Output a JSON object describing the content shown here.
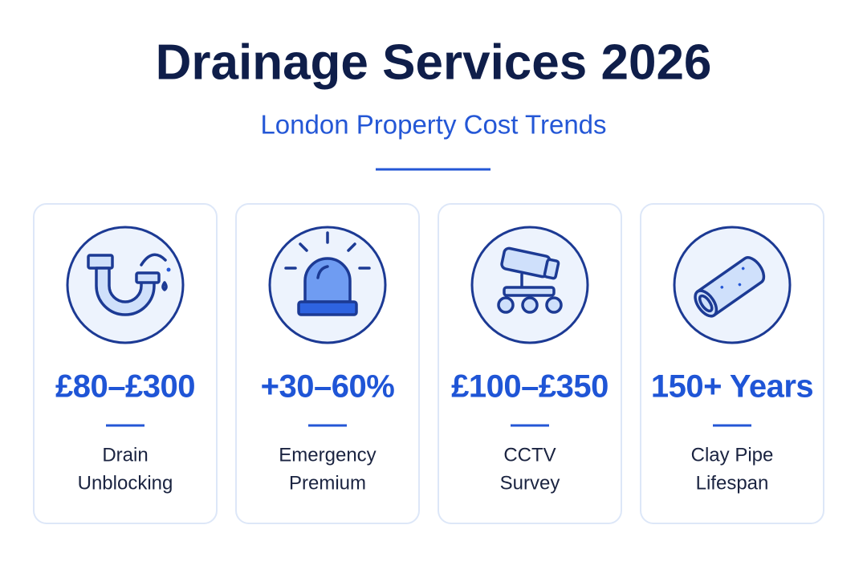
{
  "header": {
    "title": "Drainage Services 2026",
    "subtitle": "London Property Cost Trends"
  },
  "cards": [
    {
      "value": "£80–£300",
      "label_lines": [
        "Drain",
        "Unblocking"
      ]
    },
    {
      "value": "+30–60%",
      "label_lines": [
        "Emergency",
        "Premium"
      ]
    },
    {
      "value": "£100–£350",
      "label_lines": [
        "CCTV",
        "Survey"
      ]
    },
    {
      "value": "150+ Years",
      "label_lines": [
        "Clay Pipe",
        "Lifespan"
      ]
    }
  ]
}
